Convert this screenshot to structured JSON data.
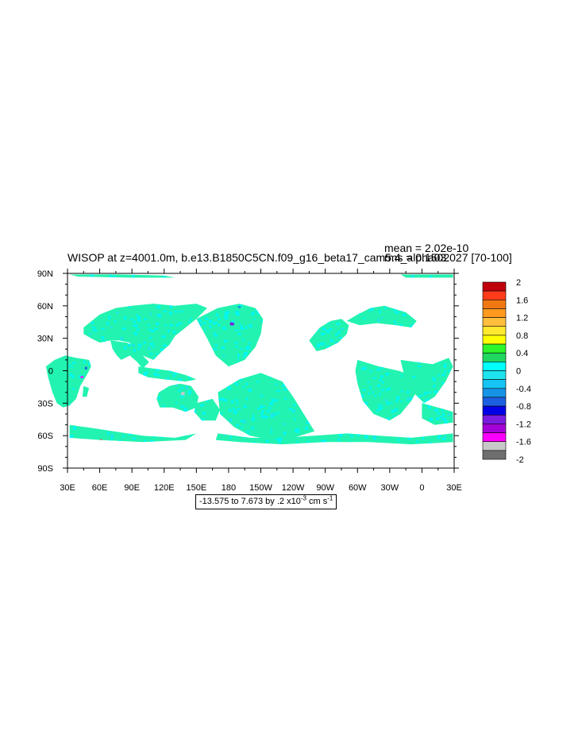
{
  "chart_data": {
    "type": "heatmap",
    "title": "WISOP at z=4001.0m, b.e13.B1850C5CN.f09_g16_beta17_cam5.4_alpha03.027 [70-100]",
    "stats": {
      "mean": "mean = 2.02e-10",
      "rms": "rms = 0.1502"
    },
    "x_ticks": [
      "30E",
      "60E",
      "90E",
      "120E",
      "150E",
      "180",
      "150W",
      "120W",
      "90W",
      "60W",
      "30W",
      "0",
      "30E"
    ],
    "y_ticks": [
      "90N",
      "60N",
      "30N",
      "0",
      "30S",
      "60S",
      "90S"
    ],
    "xlim_lon": [
      30,
      390
    ],
    "ylim_lat": [
      -90,
      90
    ],
    "colorbar": {
      "labels": [
        "2",
        "1.6",
        "1.2",
        "0.8",
        "0.4",
        "0",
        "-0.4",
        "-0.8",
        "-1.2",
        "-1.6",
        "-2"
      ],
      "colors": [
        "#c0000b",
        "#ff3b1a",
        "#f07813",
        "#ff9a1e",
        "#ffbf3c",
        "#ffe92e",
        "#ffff00",
        "#2df52a",
        "#20d860",
        "#00ffff",
        "#1ee3ee",
        "#15c4f4",
        "#1793e6",
        "#1c60e2",
        "#0000e6",
        "#7a1ce0",
        "#a600d8",
        "#ff00ff",
        "#c8c8c8",
        "#6e6e6e"
      ]
    },
    "units_box": {
      "range": "-13.575 to 7.673 by .2 x10",
      "exp": "-3",
      "unit": " cm s",
      "unit_exp": "-1"
    },
    "dominant_color": "#22f3b0",
    "patch_color": "#00f6f6"
  }
}
